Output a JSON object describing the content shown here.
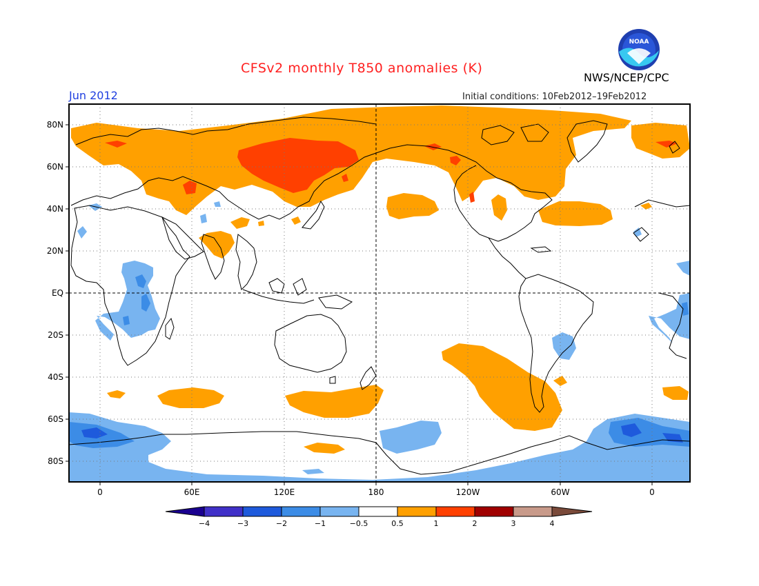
{
  "header": {
    "title": "CFSv2 monthly T850 anomalies (K)",
    "month": "Jun 2012",
    "initial_conditions": "Initial conditions: 10Feb2012–19Feb2012",
    "agency": "NWS/NCEP/CPC",
    "logo_text": "NOAA"
  },
  "map": {
    "projection": "equirectangular",
    "lon_range": [
      -20,
      380
    ],
    "lat_range": [
      -90,
      90
    ],
    "lat_ticks": [
      "80N",
      "60N",
      "40N",
      "20N",
      "EQ",
      "20S",
      "40S",
      "60S",
      "80S"
    ],
    "lon_ticks": [
      "0",
      "60E",
      "120E",
      "180",
      "120W",
      "60W",
      "0"
    ],
    "reference_lines": [
      "equator",
      "180 meridian"
    ]
  },
  "colorbar": {
    "labels": [
      "−4",
      "−3",
      "−2",
      "−1",
      "−0.5",
      "0.5",
      "1",
      "2",
      "3",
      "4"
    ],
    "colors": [
      "#1a0090",
      "#4030c8",
      "#1e5adc",
      "#3c8ce6",
      "#78b4f0",
      "#ffffff",
      "#ffa000",
      "#ff4000",
      "#a00000",
      "#c89a8a",
      "#7a4a3a"
    ]
  },
  "anomaly_colors": {
    "warm_0_5_to_1": "#ffa000",
    "warm_1_to_2": "#ff4000",
    "cold_0_5_to_1": "#78b4f0",
    "cold_1_to_2": "#3c8ce6",
    "cold_2_to_3": "#1e5adc"
  }
}
